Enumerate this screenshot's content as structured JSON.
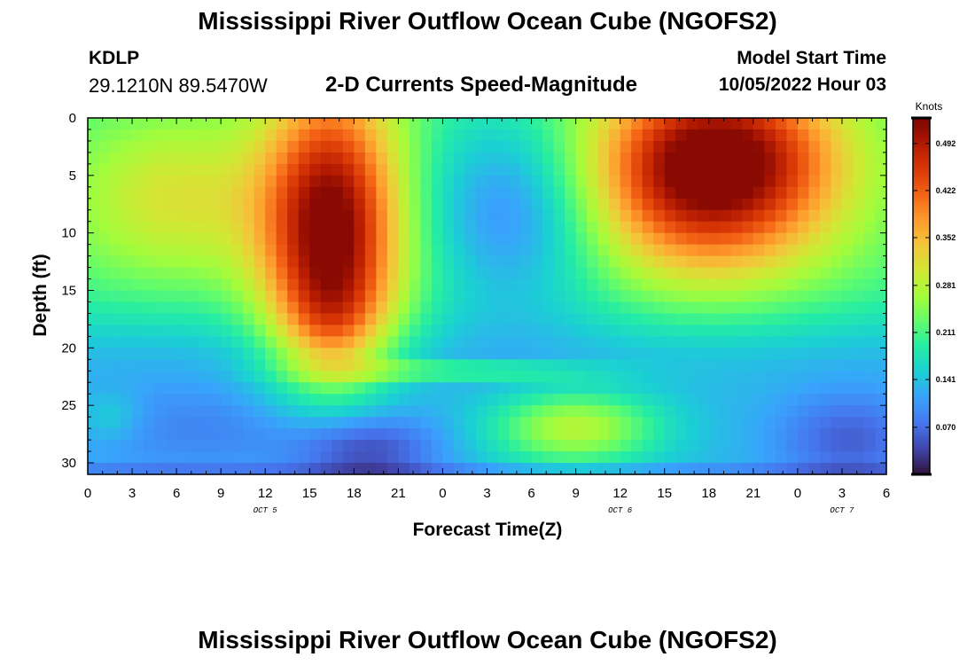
{
  "header": {
    "title": "Mississippi River Outflow Ocean Cube (NGOFS2)",
    "station_id": "KDLP",
    "station_coords": "29.1210N  89.5470W",
    "subtitle": "2-D Currents Speed-Magnitude",
    "model_start_label": "Model Start Time",
    "model_start_value": "10/05/2022 Hour 03"
  },
  "footer": {
    "title": "Mississippi River Outflow Ocean Cube (NGOFS2)"
  },
  "chart_data": {
    "type": "heatmap",
    "title": "2-D Currents Speed-Magnitude",
    "xlabel": "Forecast Time(Z)",
    "ylabel": "Depth (ft)",
    "x_range_hours": [
      0,
      54
    ],
    "y_range": [
      0,
      31
    ],
    "y_inverted": true,
    "x_tick_labels": [
      "0",
      "3",
      "6",
      "9",
      "12",
      "15",
      "18",
      "21",
      "0",
      "3",
      "6",
      "9",
      "12",
      "15",
      "18",
      "21",
      "0",
      "3",
      "6"
    ],
    "y_ticks": [
      0,
      5,
      10,
      15,
      20,
      25,
      30
    ],
    "date_labels": [
      {
        "label": "OCT 5",
        "hour": 12
      },
      {
        "label": "OCT 6",
        "hour": 36
      },
      {
        "label": "OCT 7",
        "hour": 51
      }
    ],
    "colorbar": {
      "units": "Knots",
      "ticks": [
        "0.492",
        "0.422",
        "0.352",
        "0.281",
        "0.211",
        "0.141",
        "0.070"
      ],
      "tick_values": [
        0.492,
        0.422,
        0.352,
        0.281,
        0.211,
        0.141,
        0.07
      ],
      "range": [
        0.0,
        0.53
      ],
      "colors": [
        "#30123b",
        "#4145ab",
        "#4675ed",
        "#39a2fc",
        "#1bcfd4",
        "#24eca6",
        "#61fc6c",
        "#a4fc3b",
        "#d1e834",
        "#f3c63a",
        "#fe9b2d",
        "#f36315",
        "#d93806",
        "#b11901",
        "#7a0403"
      ]
    },
    "blobs": [
      {
        "t": 16.5,
        "d": 10,
        "st": 3.3,
        "sd": 9,
        "a": 0.33
      },
      {
        "t": 16.5,
        "d": 18,
        "st": 2.4,
        "sd": 3,
        "a": 0.06
      },
      {
        "t": 29.0,
        "d": 8,
        "st": 4.5,
        "sd": 6,
        "a": -0.12
      },
      {
        "t": 6.0,
        "d": 7,
        "st": 5.0,
        "sd": 5,
        "a": 0.1
      },
      {
        "t": 42.0,
        "d": 5,
        "st": 6.0,
        "sd": 6,
        "a": 0.32
      },
      {
        "t": 44.0,
        "d": 2,
        "st": 5.0,
        "sd": 4,
        "a": 0.06
      },
      {
        "t": 33.0,
        "d": 27,
        "st": 4.0,
        "sd": 2.3,
        "a": 0.15
      },
      {
        "t": 18.5,
        "d": 29,
        "st": 3.5,
        "sd": 2.5,
        "a": -0.1
      },
      {
        "t": 51.5,
        "d": 28,
        "st": 3.5,
        "sd": 3,
        "a": -0.07
      },
      {
        "t": 8.0,
        "d": 27,
        "st": 7.0,
        "sd": 3,
        "a": -0.04
      },
      {
        "t": 1.5,
        "d": 26,
        "st": 1.5,
        "sd": 1.5,
        "a": 0.04
      }
    ]
  }
}
